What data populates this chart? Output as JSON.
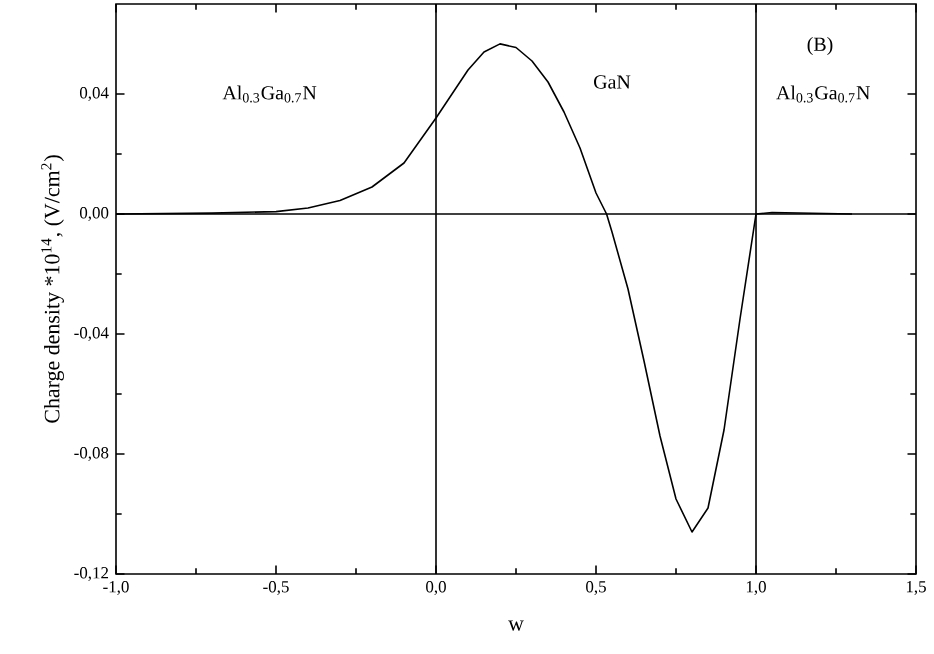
{
  "chart_data": {
    "type": "line",
    "xlabel": "w",
    "ylabel": "Charge density *10$^{14}$, (V/cm$^{2}$)",
    "annotations": [
      "Al$_{0.3}$Ga$_{0.7}$N",
      "GaN",
      "Al$_{0.3}$Ga$_{0.7}$N",
      "(B)"
    ],
    "x": [
      -1.0,
      -0.7,
      -0.5,
      -0.4,
      -0.3,
      -0.2,
      -0.1,
      0.0,
      0.05,
      0.1,
      0.15,
      0.2,
      0.25,
      0.3,
      0.35,
      0.4,
      0.45,
      0.5,
      0.533,
      0.55,
      0.6,
      0.65,
      0.7,
      0.75,
      0.8,
      0.85,
      0.9,
      0.95,
      1.0,
      1.05,
      1.3
    ],
    "series": [
      {
        "color": "#000000",
        "values": [
          0.0,
          0.0003,
          0.0008,
          0.002,
          0.0045,
          0.009,
          0.017,
          0.032,
          0.04,
          0.048,
          0.054,
          0.0567,
          0.0555,
          0.051,
          0.044,
          0.034,
          0.022,
          0.007,
          0.0,
          -0.006,
          -0.025,
          -0.049,
          -0.074,
          -0.095,
          -0.106,
          -0.098,
          -0.072,
          -0.035,
          0.0,
          0.0005,
          0.0
        ]
      }
    ],
    "xlim": [
      -1.0,
      1.5
    ],
    "ylim": [
      -0.12,
      0.07
    ],
    "xticks": [
      {
        "value": -1.0,
        "label": "-1,0"
      },
      {
        "value": -0.5,
        "label": "-0,5"
      },
      {
        "value": 0.0,
        "label": "0,0"
      },
      {
        "value": 0.5,
        "label": "0,5"
      },
      {
        "value": 1.0,
        "label": "1,0"
      },
      {
        "value": 1.5,
        "label": "1,5"
      }
    ],
    "yticks": [
      {
        "value": -0.12,
        "label": "-0,12"
      },
      {
        "value": -0.08,
        "label": "-0,08"
      },
      {
        "value": -0.04,
        "label": "-0,04"
      },
      {
        "value": 0.0,
        "label": "0,00"
      },
      {
        "value": 0.04,
        "label": "0,04"
      }
    ],
    "ref_lines": [
      {
        "axis": "x",
        "value": 0.0,
        "color": "#000000"
      },
      {
        "axis": "x",
        "value": 1.0,
        "color": "#000000"
      },
      {
        "axis": "y",
        "value": 0.0,
        "color": "#000000"
      }
    ],
    "grid": false,
    "legend": false,
    "line_style": "solid"
  }
}
